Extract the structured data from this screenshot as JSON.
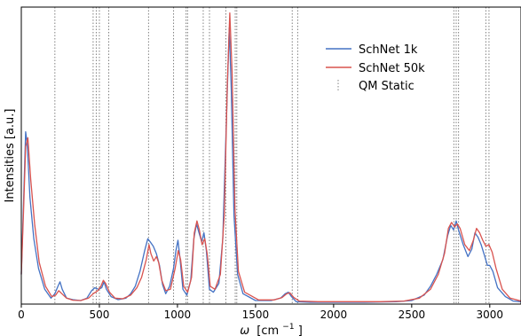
{
  "chart_data": {
    "type": "line",
    "title": "",
    "xlabel_prefix": "ω",
    "xlabel_unit": "[cm",
    "xlabel_exp": "−1",
    "xlabel_close": "]",
    "ylabel": "Intensities [a.u.]",
    "xlim": [
      0,
      3200
    ],
    "ylim": [
      0,
      1.0
    ],
    "x_ticks": [
      0,
      500,
      1000,
      1500,
      2000,
      2500,
      3000
    ],
    "y_ticks": [],
    "grid": false,
    "legend_position": "upper-right",
    "series": [
      {
        "name": "SchNet 1k",
        "color": "#4472c4",
        "style": "solid",
        "points": [
          [
            0,
            0.1
          ],
          [
            15,
            0.35
          ],
          [
            28,
            0.58
          ],
          [
            38,
            0.54
          ],
          [
            55,
            0.36
          ],
          [
            80,
            0.22
          ],
          [
            110,
            0.12
          ],
          [
            150,
            0.05
          ],
          [
            190,
            0.02
          ],
          [
            215,
            0.035
          ],
          [
            235,
            0.06
          ],
          [
            248,
            0.075
          ],
          [
            262,
            0.05
          ],
          [
            290,
            0.02
          ],
          [
            330,
            0.015
          ],
          [
            380,
            0.012
          ],
          [
            420,
            0.02
          ],
          [
            450,
            0.045
          ],
          [
            470,
            0.055
          ],
          [
            495,
            0.05
          ],
          [
            515,
            0.055
          ],
          [
            530,
            0.075
          ],
          [
            545,
            0.05
          ],
          [
            575,
            0.025
          ],
          [
            620,
            0.015
          ],
          [
            670,
            0.02
          ],
          [
            700,
            0.035
          ],
          [
            730,
            0.06
          ],
          [
            760,
            0.11
          ],
          [
            790,
            0.18
          ],
          [
            810,
            0.22
          ],
          [
            825,
            0.21
          ],
          [
            845,
            0.195
          ],
          [
            865,
            0.17
          ],
          [
            885,
            0.13
          ],
          [
            905,
            0.065
          ],
          [
            925,
            0.035
          ],
          [
            950,
            0.06
          ],
          [
            975,
            0.12
          ],
          [
            990,
            0.18
          ],
          [
            1003,
            0.215
          ],
          [
            1015,
            0.16
          ],
          [
            1035,
            0.05
          ],
          [
            1060,
            0.03
          ],
          [
            1085,
            0.08
          ],
          [
            1105,
            0.22
          ],
          [
            1122,
            0.27
          ],
          [
            1138,
            0.24
          ],
          [
            1155,
            0.21
          ],
          [
            1170,
            0.24
          ],
          [
            1185,
            0.18
          ],
          [
            1205,
            0.05
          ],
          [
            1230,
            0.04
          ],
          [
            1265,
            0.07
          ],
          [
            1290,
            0.22
          ],
          [
            1315,
            0.65
          ],
          [
            1332,
            0.93
          ],
          [
            1345,
            0.72
          ],
          [
            1362,
            0.3
          ],
          [
            1385,
            0.1
          ],
          [
            1420,
            0.035
          ],
          [
            1500,
            0.012
          ],
          [
            1600,
            0.012
          ],
          [
            1660,
            0.02
          ],
          [
            1690,
            0.035
          ],
          [
            1710,
            0.04
          ],
          [
            1730,
            0.025
          ],
          [
            1760,
            0.008
          ],
          [
            1850,
            0.006
          ],
          [
            2000,
            0.006
          ],
          [
            2200,
            0.006
          ],
          [
            2400,
            0.008
          ],
          [
            2500,
            0.012
          ],
          [
            2580,
            0.03
          ],
          [
            2620,
            0.06
          ],
          [
            2660,
            0.1
          ],
          [
            2700,
            0.15
          ],
          [
            2730,
            0.23
          ],
          [
            2750,
            0.265
          ],
          [
            2768,
            0.25
          ],
          [
            2785,
            0.28
          ],
          [
            2800,
            0.25
          ],
          [
            2830,
            0.2
          ],
          [
            2860,
            0.16
          ],
          [
            2885,
            0.185
          ],
          [
            2905,
            0.24
          ],
          [
            2925,
            0.225
          ],
          [
            2945,
            0.2
          ],
          [
            2965,
            0.165
          ],
          [
            2985,
            0.13
          ],
          [
            3000,
            0.13
          ],
          [
            3020,
            0.11
          ],
          [
            3050,
            0.055
          ],
          [
            3100,
            0.025
          ],
          [
            3150,
            0.01
          ],
          [
            3200,
            0.008
          ]
        ]
      },
      {
        "name": "SchNet 50k",
        "color": "#d9534f",
        "style": "solid",
        "points": [
          [
            0,
            0.1
          ],
          [
            15,
            0.32
          ],
          [
            28,
            0.53
          ],
          [
            42,
            0.56
          ],
          [
            60,
            0.42
          ],
          [
            85,
            0.27
          ],
          [
            115,
            0.14
          ],
          [
            155,
            0.06
          ],
          [
            195,
            0.025
          ],
          [
            220,
            0.03
          ],
          [
            240,
            0.045
          ],
          [
            260,
            0.035
          ],
          [
            290,
            0.02
          ],
          [
            330,
            0.013
          ],
          [
            380,
            0.012
          ],
          [
            430,
            0.02
          ],
          [
            460,
            0.035
          ],
          [
            490,
            0.045
          ],
          [
            510,
            0.06
          ],
          [
            525,
            0.08
          ],
          [
            540,
            0.07
          ],
          [
            565,
            0.04
          ],
          [
            600,
            0.02
          ],
          [
            650,
            0.018
          ],
          [
            700,
            0.03
          ],
          [
            740,
            0.055
          ],
          [
            770,
            0.09
          ],
          [
            800,
            0.15
          ],
          [
            818,
            0.2
          ],
          [
            830,
            0.17
          ],
          [
            848,
            0.145
          ],
          [
            865,
            0.16
          ],
          [
            880,
            0.14
          ],
          [
            900,
            0.08
          ],
          [
            925,
            0.045
          ],
          [
            955,
            0.05
          ],
          [
            985,
            0.12
          ],
          [
            1005,
            0.18
          ],
          [
            1020,
            0.15
          ],
          [
            1040,
            0.06
          ],
          [
            1065,
            0.04
          ],
          [
            1090,
            0.09
          ],
          [
            1108,
            0.24
          ],
          [
            1125,
            0.28
          ],
          [
            1140,
            0.25
          ],
          [
            1158,
            0.2
          ],
          [
            1175,
            0.22
          ],
          [
            1190,
            0.17
          ],
          [
            1210,
            0.06
          ],
          [
            1240,
            0.05
          ],
          [
            1275,
            0.1
          ],
          [
            1300,
            0.3
          ],
          [
            1320,
            0.75
          ],
          [
            1335,
            0.98
          ],
          [
            1350,
            0.78
          ],
          [
            1368,
            0.32
          ],
          [
            1390,
            0.11
          ],
          [
            1430,
            0.04
          ],
          [
            1520,
            0.014
          ],
          [
            1620,
            0.014
          ],
          [
            1670,
            0.022
          ],
          [
            1700,
            0.035
          ],
          [
            1720,
            0.038
          ],
          [
            1745,
            0.022
          ],
          [
            1780,
            0.01
          ],
          [
            1900,
            0.008
          ],
          [
            2100,
            0.008
          ],
          [
            2300,
            0.008
          ],
          [
            2450,
            0.01
          ],
          [
            2550,
            0.02
          ],
          [
            2620,
            0.05
          ],
          [
            2670,
            0.1
          ],
          [
            2710,
            0.17
          ],
          [
            2735,
            0.255
          ],
          [
            2755,
            0.275
          ],
          [
            2775,
            0.26
          ],
          [
            2792,
            0.27
          ],
          [
            2810,
            0.255
          ],
          [
            2840,
            0.2
          ],
          [
            2870,
            0.18
          ],
          [
            2895,
            0.215
          ],
          [
            2915,
            0.255
          ],
          [
            2935,
            0.24
          ],
          [
            2955,
            0.215
          ],
          [
            2975,
            0.195
          ],
          [
            2995,
            0.2
          ],
          [
            3015,
            0.175
          ],
          [
            3040,
            0.12
          ],
          [
            3080,
            0.05
          ],
          [
            3130,
            0.02
          ],
          [
            3200,
            0.01
          ]
        ]
      }
    ],
    "reference_lines": {
      "name": "QM Static",
      "color": "#808080",
      "style": "dotted",
      "x": [
        215,
        460,
        480,
        500,
        560,
        815,
        975,
        1055,
        1065,
        1165,
        1205,
        1310,
        1370,
        1380,
        1735,
        1770,
        2770,
        2785,
        2800,
        2975,
        2995
      ]
    }
  }
}
